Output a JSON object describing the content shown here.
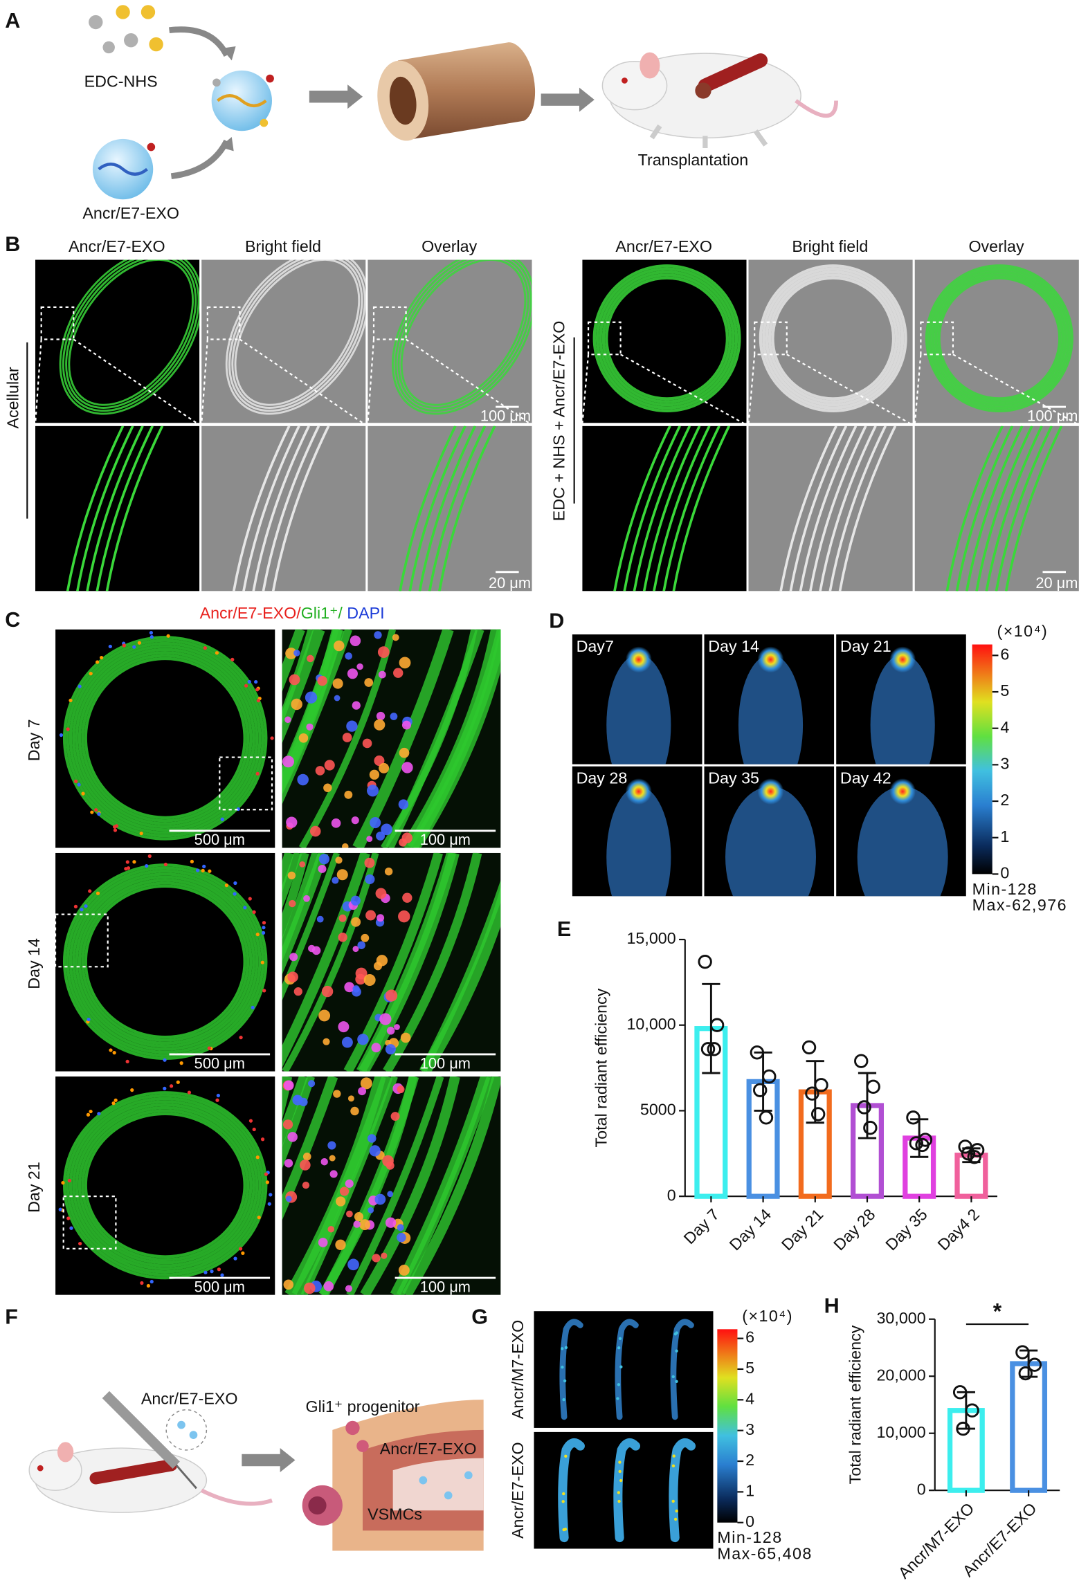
{
  "panel_labels": [
    "A",
    "B",
    "C",
    "D",
    "E",
    "F",
    "G",
    "H"
  ],
  "panel_a": {
    "reagent": "EDC-NHS",
    "exosome": "Ancr/E7-EXO",
    "step": "Transplantation"
  },
  "panel_b": {
    "columns": [
      "Ancr/E7-EXO",
      "Bright field",
      "Overlay"
    ],
    "groups": [
      "Acellular",
      "EDC + NHS + Ancr/E7-EXO"
    ],
    "scale_bars": [
      "100 μm",
      "20 μm"
    ]
  },
  "panel_c": {
    "title_parts": [
      {
        "text": "Ancr/E7-EXO/",
        "color": "#e8201c"
      },
      {
        "text": "Gli1⁺/",
        "color": "#22b022"
      },
      {
        "text": " DAPI",
        "color": "#1c3cd8"
      }
    ],
    "rows": [
      "Day 7",
      "Day 14",
      "Day 21"
    ],
    "scale_bars": [
      "500 μm",
      "100 μm"
    ]
  },
  "panel_d": {
    "days": [
      "Day7",
      "Day 14",
      "Day 21",
      "Day 28",
      "Day 35",
      "Day 42"
    ],
    "colorbar": {
      "unit": "(×10⁴)",
      "lim": [
        0,
        6.3
      ],
      "ticks": [
        0,
        1,
        2,
        3,
        4,
        5,
        6
      ],
      "min": "Min-128",
      "max": "Max-62,976"
    }
  },
  "panel_f": {
    "injection": "Ancr/E7-EXO",
    "progenitor": "Gli1⁺ progenitor",
    "exosome": "Ancr/E7-EXO",
    "cells": "VSMCs"
  },
  "panel_g": {
    "rows": [
      "Ancr/M7-EXO",
      "Ancr/E7-EXO"
    ],
    "colorbar": {
      "unit": "(×10⁴)",
      "lim": [
        0,
        6.3
      ],
      "ticks": [
        0,
        1,
        2,
        3,
        4,
        5,
        6
      ],
      "min": "Min-128",
      "max": "Max-65,408"
    }
  },
  "chart_data": [
    {
      "type": "bar",
      "y_label": "Total radiant efficiency",
      "categories": [
        "Day 7",
        "Day 14",
        "Day 21",
        "Day 28",
        "Day 35",
        "Day4 2"
      ],
      "values": [
        9800,
        6700,
        6100,
        5300,
        3400,
        2400
      ],
      "errors": [
        2600,
        1700,
        1800,
        1900,
        1100,
        400
      ],
      "points": [
        [
          13700,
          10000,
          8600,
          8600
        ],
        [
          8400,
          7000,
          6200,
          4600
        ],
        [
          8700,
          6500,
          6000,
          4800
        ],
        [
          7900,
          6400,
          5200,
          4000
        ],
        [
          4600,
          3300,
          3100,
          3000
        ],
        [
          2900,
          2700,
          2500,
          2300
        ]
      ],
      "colors": [
        "#3ceeee",
        "#4a90e2",
        "#f26b1d",
        "#b14fd3",
        "#e040e0",
        "#f0609c"
      ],
      "ylim": [
        0,
        15000
      ],
      "yticks": [
        0,
        5000,
        {
          "value": 10000,
          "label": "10,000"
        },
        {
          "value": 15000,
          "label": "15,000"
        }
      ]
    },
    {
      "type": "bar",
      "y_label": "Total radiant efficiency",
      "categories": [
        "Ancr/M7-EXO",
        "Ancr/E7-EXO"
      ],
      "values": [
        14000,
        22200
      ],
      "errors": [
        3200,
        2300
      ],
      "points": [
        [
          17200,
          14000,
          10800
        ],
        [
          24200,
          22000,
          20500
        ]
      ],
      "colors": [
        "#3ceeee",
        "#4a90e2"
      ],
      "annotation": "*",
      "ylim": [
        0,
        30000
      ],
      "yticks": [
        0,
        {
          "value": 10000,
          "label": "10,000"
        },
        {
          "value": 20000,
          "label": "20,000"
        },
        {
          "value": 30000,
          "label": "30,000"
        }
      ]
    }
  ]
}
